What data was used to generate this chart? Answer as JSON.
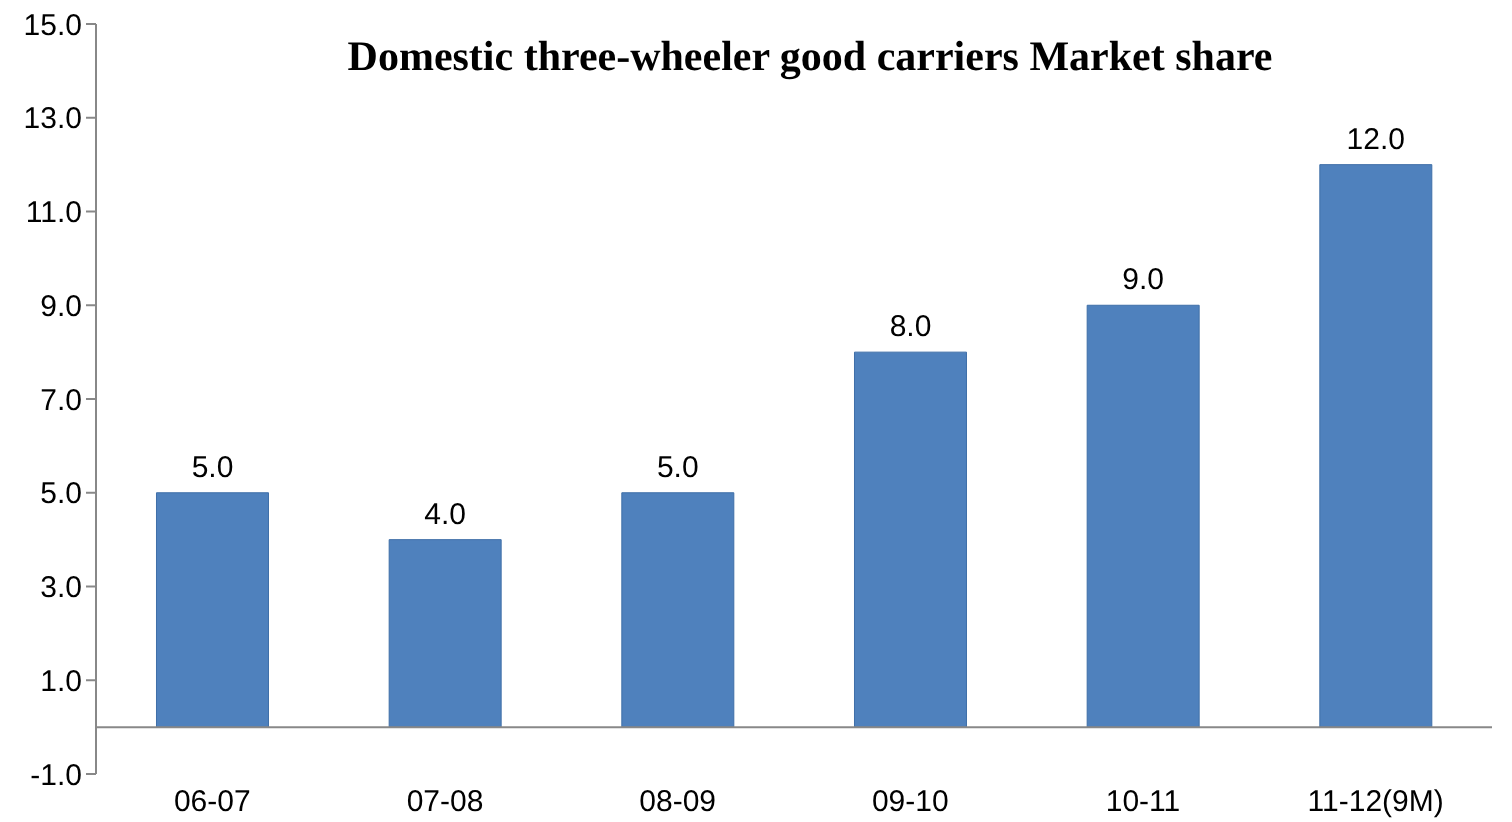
{
  "chart_data": {
    "type": "bar",
    "title": "Domestic three-wheeler good carriers Market share",
    "categories": [
      "06-07",
      "07-08",
      "08-09",
      "09-10",
      "10-11",
      "11-12(9M)"
    ],
    "values": [
      5,
      4,
      5,
      8,
      9,
      12
    ],
    "value_labels": [
      "5.0",
      "4.0",
      "5.0",
      "8.0",
      "9.0",
      "12.0"
    ],
    "color": "#4f81bd",
    "ylim": [
      -1,
      15
    ],
    "yticks": [
      {
        "value": -1,
        "label": "-1.0"
      },
      {
        "value": 1,
        "label": "1.0"
      },
      {
        "value": 3,
        "label": "3.0"
      },
      {
        "value": 5,
        "label": "5.0"
      },
      {
        "value": 7,
        "label": "7.0"
      },
      {
        "value": 9,
        "label": "9.0"
      },
      {
        "value": 11,
        "label": "11.0"
      },
      {
        "value": 13,
        "label": "13.0"
      },
      {
        "value": 15,
        "label": "15.0"
      }
    ],
    "grid": false,
    "legend": false
  }
}
